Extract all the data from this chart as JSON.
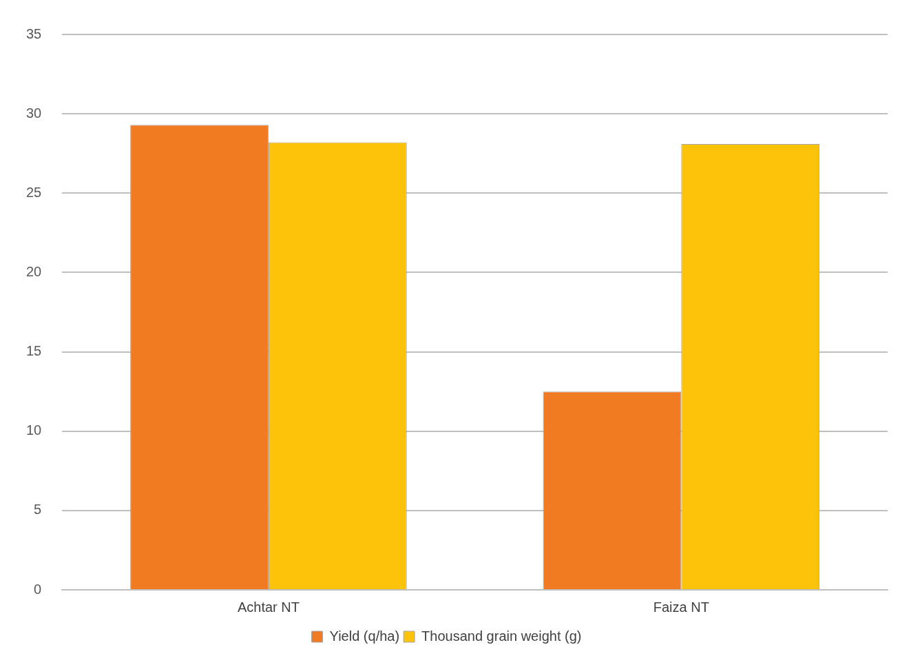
{
  "chart_data": {
    "type": "bar",
    "categories": [
      "Achtar NT",
      "Faiza NT"
    ],
    "series": [
      {
        "name": "Yield (q/ha)",
        "color": "#f07b22",
        "values": [
          29.3,
          12.5
        ]
      },
      {
        "name": "Thousand grain weight (g)",
        "color": "#fcc20a",
        "values": [
          28.2,
          28.1
        ]
      }
    ],
    "ylim": [
      0,
      35
    ],
    "yticks": [
      0,
      5,
      10,
      15,
      20,
      25,
      30,
      35
    ],
    "grid": "y",
    "legend": "bottom"
  }
}
